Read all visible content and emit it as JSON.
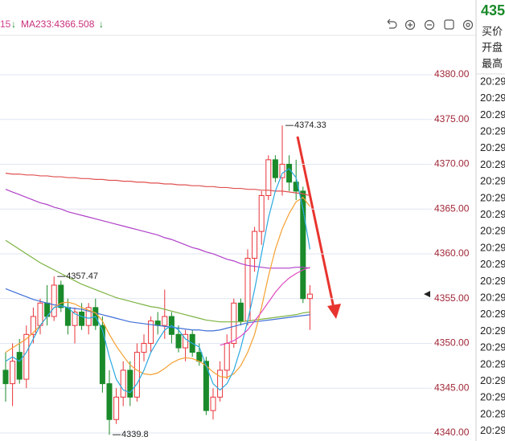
{
  "chart_data": {
    "type": "candlestick",
    "legend_text": [
      "15",
      "MA233:4366.508"
    ],
    "open": [
      4347,
      4345.5,
      4349,
      4346,
      4351,
      4352,
      4354.5,
      4353,
      4356.5,
      4354,
      4352,
      4353.5,
      4352,
      4354,
      4352,
      4345.5,
      4341.5,
      4344,
      4347,
      4344,
      4349,
      4350,
      4352.5,
      4352,
      4353,
      4351,
      4349.5,
      4351,
      4349,
      4348,
      4342.5,
      4344,
      4347,
      4350,
      4354.5,
      4352.5,
      4359.5,
      4362.5,
      4366.5,
      4370.5,
      4368.5,
      4370,
      4368,
      4367,
      4355
    ],
    "high": [
      4349,
      4350,
      4350.5,
      4352,
      4354,
      4355,
      4356.5,
      4357.47,
      4357,
      4355,
      4354,
      4354.5,
      4354.5,
      4355,
      4353,
      4347,
      4345,
      4348,
      4348,
      4350,
      4351,
      4353,
      4353.5,
      4356,
      4353.5,
      4352,
      4351.5,
      4351.5,
      4350,
      4348.5,
      4345,
      4348,
      4351,
      4355,
      4355,
      4360.5,
      4363,
      4367,
      4371,
      4371,
      4374.33,
      4371,
      4370.5,
      4367.5,
      4356.5
    ],
    "low": [
      4343.5,
      4343,
      4345.5,
      4345,
      4350,
      4351,
      4352,
      4352.5,
      4353.5,
      4351,
      4350,
      4351.5,
      4351,
      4351.5,
      4344.5,
      4339.8,
      4341,
      4343,
      4343,
      4343.5,
      4348,
      4349,
      4351,
      4350.5,
      4350,
      4349,
      4348,
      4348.5,
      4347.5,
      4342,
      4341.5,
      4343.5,
      4346,
      4349.5,
      4352,
      4352,
      4358,
      4361,
      4366,
      4368,
      4366.5,
      4367,
      4366,
      4354.5,
      4351.5
    ],
    "close": [
      4345.5,
      4348,
      4346,
      4351,
      4353,
      4354.5,
      4353,
      4356.5,
      4354,
      4352,
      4353.5,
      4352,
      4354,
      4352,
      4345.5,
      4341.5,
      4344,
      4347,
      4344,
      4349,
      4350,
      4352.5,
      4352,
      4353,
      4351,
      4349.5,
      4351,
      4349,
      4348,
      4342.5,
      4344,
      4347,
      4350,
      4354.5,
      4352.5,
      4359.5,
      4362.5,
      4366.5,
      4370.5,
      4368.5,
      4370,
      4368,
      4367,
      4355,
      4355.5
    ],
    "up_color": "#e8343a",
    "down_color": "#1a8a2a",
    "lines": [
      {
        "name": "MA233",
        "color": "#e05050",
        "values": [
          4369.0,
          4368.9,
          4368.9,
          4368.8,
          4368.8,
          4368.7,
          4368.7,
          4368.6,
          4368.6,
          4368.5,
          4368.5,
          4368.4,
          4368.4,
          4368.3,
          4368.3,
          4368.2,
          4368.2,
          4368.1,
          4368.1,
          4368.0,
          4368.0,
          4367.9,
          4367.9,
          4367.8,
          4367.8,
          4367.7,
          4367.7,
          4367.6,
          4367.6,
          4367.5,
          4367.5,
          4367.4,
          4367.4,
          4367.3,
          4367.3,
          4367.2,
          4367.2,
          4367.1,
          4367.1,
          4367.0,
          4367.0,
          4366.9,
          4366.8,
          4366.7,
          4366.5
        ]
      },
      {
        "color": "#b040c8",
        "values": [
          4367.2,
          4366.9,
          4366.6,
          4366.3,
          4366.0,
          4365.7,
          4365.5,
          4365.2,
          4365.0,
          4364.7,
          4364.5,
          4364.3,
          4364.1,
          4363.9,
          4363.7,
          4363.5,
          4363.3,
          4363.1,
          4362.9,
          4362.7,
          4362.5,
          4362.3,
          4362.1,
          4361.8,
          4361.6,
          4361.3,
          4361.0,
          4360.7,
          4360.5,
          4360.2,
          4360.0,
          4359.7,
          4359.4,
          4359.2,
          4358.9,
          4358.7,
          4358.6,
          4358.5,
          4358.4,
          4358.4,
          4358.4,
          4358.4,
          4358.5,
          4358.5,
          4358.4
        ]
      },
      {
        "color": "#7cb342",
        "values": [
          4361.5,
          4361.0,
          4360.5,
          4360.0,
          4359.5,
          4359.0,
          4358.6,
          4358.2,
          4357.8,
          4357.4,
          4357.0,
          4356.6,
          4356.3,
          4356.0,
          4355.7,
          4355.4,
          4355.1,
          4354.9,
          4354.7,
          4354.5,
          4354.3,
          4354.1,
          4354.0,
          4353.8,
          4353.6,
          4353.4,
          4353.2,
          4353.0,
          4352.8,
          4352.6,
          4352.5,
          4352.4,
          4352.4,
          4352.4,
          4352.4,
          4352.5,
          4352.6,
          4352.7,
          4352.8,
          4352.9,
          4353.0,
          4353.1,
          4353.2,
          4353.4,
          4353.5
        ]
      },
      {
        "color": "#3f6fd8",
        "values": [
          4356.1,
          4355.8,
          4355.5,
          4355.2,
          4354.9,
          4354.7,
          4354.5,
          4354.3,
          4354.2,
          4354.0,
          4353.9,
          4353.8,
          4353.6,
          4353.4,
          4353.2,
          4353.0,
          4352.8,
          4352.6,
          4352.4,
          4352.3,
          4352.2,
          4352.1,
          4352.0,
          4351.9,
          4351.8,
          4351.7,
          4351.6,
          4351.5,
          4351.5,
          4351.4,
          4351.4,
          4351.5,
          4351.7,
          4351.9,
          4352.1,
          4352.3,
          4352.4,
          4352.5,
          4352.6,
          4352.7,
          4352.8,
          4352.9,
          4353.0,
          4353.1,
          4353.2
        ]
      },
      {
        "color": "#f5a030",
        "values": [
          4349,
          4349.5,
          4350,
          4350.5,
          4351.2,
          4352,
          4353,
          4354,
          4354.5,
          4354.6,
          4354.4,
          4354,
          4353.7,
          4353.4,
          4352.5,
          4351,
          4349.7,
          4348.6,
          4347.6,
          4347,
          4346.6,
          4346.5,
          4346.7,
          4347.2,
          4347.8,
          4348.2,
          4348.4,
          4348.3,
          4348,
          4347.5,
          4346.8,
          4346.3,
          4346.2,
          4346.6,
          4347.5,
          4349,
          4351,
          4354,
          4357.5,
          4360.5,
          4362.8,
          4364.5,
          4365.8,
          4366.3,
          4365.3
        ]
      },
      {
        "color": "#2aa8e0",
        "values": [
          4348,
          4348.5,
          4348,
          4349,
          4350.5,
          4352,
          4353,
          4354,
          4354.2,
          4354,
          4353.3,
          4353,
          4352.8,
          4353,
          4351.5,
          4348.5,
          4346,
          4344.8,
          4344.5,
          4345.5,
          4347,
          4349,
          4350.3,
          4351.5,
          4352,
          4351.5,
          4350.5,
          4350,
          4349.6,
          4347.5,
          4345.5,
          4344.8,
          4345.5,
          4347,
          4349.5,
          4352.5,
          4356,
          4360,
          4364,
          4367,
          4369,
          4369.5,
          4368.5,
          4365,
          4360.5
        ]
      },
      {
        "color": "#e048c0",
        "values": [
          null,
          null,
          null,
          null,
          null,
          null,
          null,
          null,
          null,
          null,
          null,
          null,
          null,
          null,
          null,
          null,
          null,
          null,
          null,
          null,
          null,
          null,
          null,
          null,
          null,
          null,
          null,
          null,
          null,
          null,
          null,
          4349.8,
          4350,
          4350.3,
          4350.8,
          4351.5,
          4352.5,
          4353.5,
          4354.6,
          4355.7,
          4356.6,
          4357.3,
          4357.8,
          4358.2,
          4358.5
        ]
      }
    ],
    "annotations": [
      {
        "text": "4374.33",
        "x": 40,
        "y": 4374.33
      },
      {
        "text": "4357.47",
        "x": 7,
        "y": 4357.47
      },
      {
        "text": "4339.8",
        "x": 15,
        "y": 4339.8
      }
    ],
    "ylim": [
      4339.1,
      4384.3
    ],
    "yticks": [
      {
        "value": 4340,
        "label": "4340.00"
      },
      {
        "value": 4345,
        "label": "4345.00"
      },
      {
        "value": 4350,
        "label": "4350.00"
      },
      {
        "value": 4355,
        "label": "4355.00"
      },
      {
        "value": 4360,
        "label": "4360.00"
      },
      {
        "value": 4365,
        "label": "4365.00"
      },
      {
        "value": 4370,
        "label": "4370.00"
      },
      {
        "value": 4375,
        "label": "4375.00"
      },
      {
        "value": 4380,
        "label": "4380.00"
      }
    ],
    "grid": true
  },
  "side_panel": {
    "price": "435",
    "labels": [
      "买价",
      "开盘",
      "最高"
    ],
    "times": [
      "20:29",
      "20:29",
      "20:29",
      "20:29",
      "20:29",
      "20:29",
      "20:29",
      "20:29",
      "20:29",
      "20:29",
      "20:29",
      "20:29",
      "20:29",
      "20:29",
      "20:29",
      "20:29",
      "20:29",
      "20:29",
      "20:29",
      "20:29",
      "20:29",
      "20:29"
    ]
  }
}
